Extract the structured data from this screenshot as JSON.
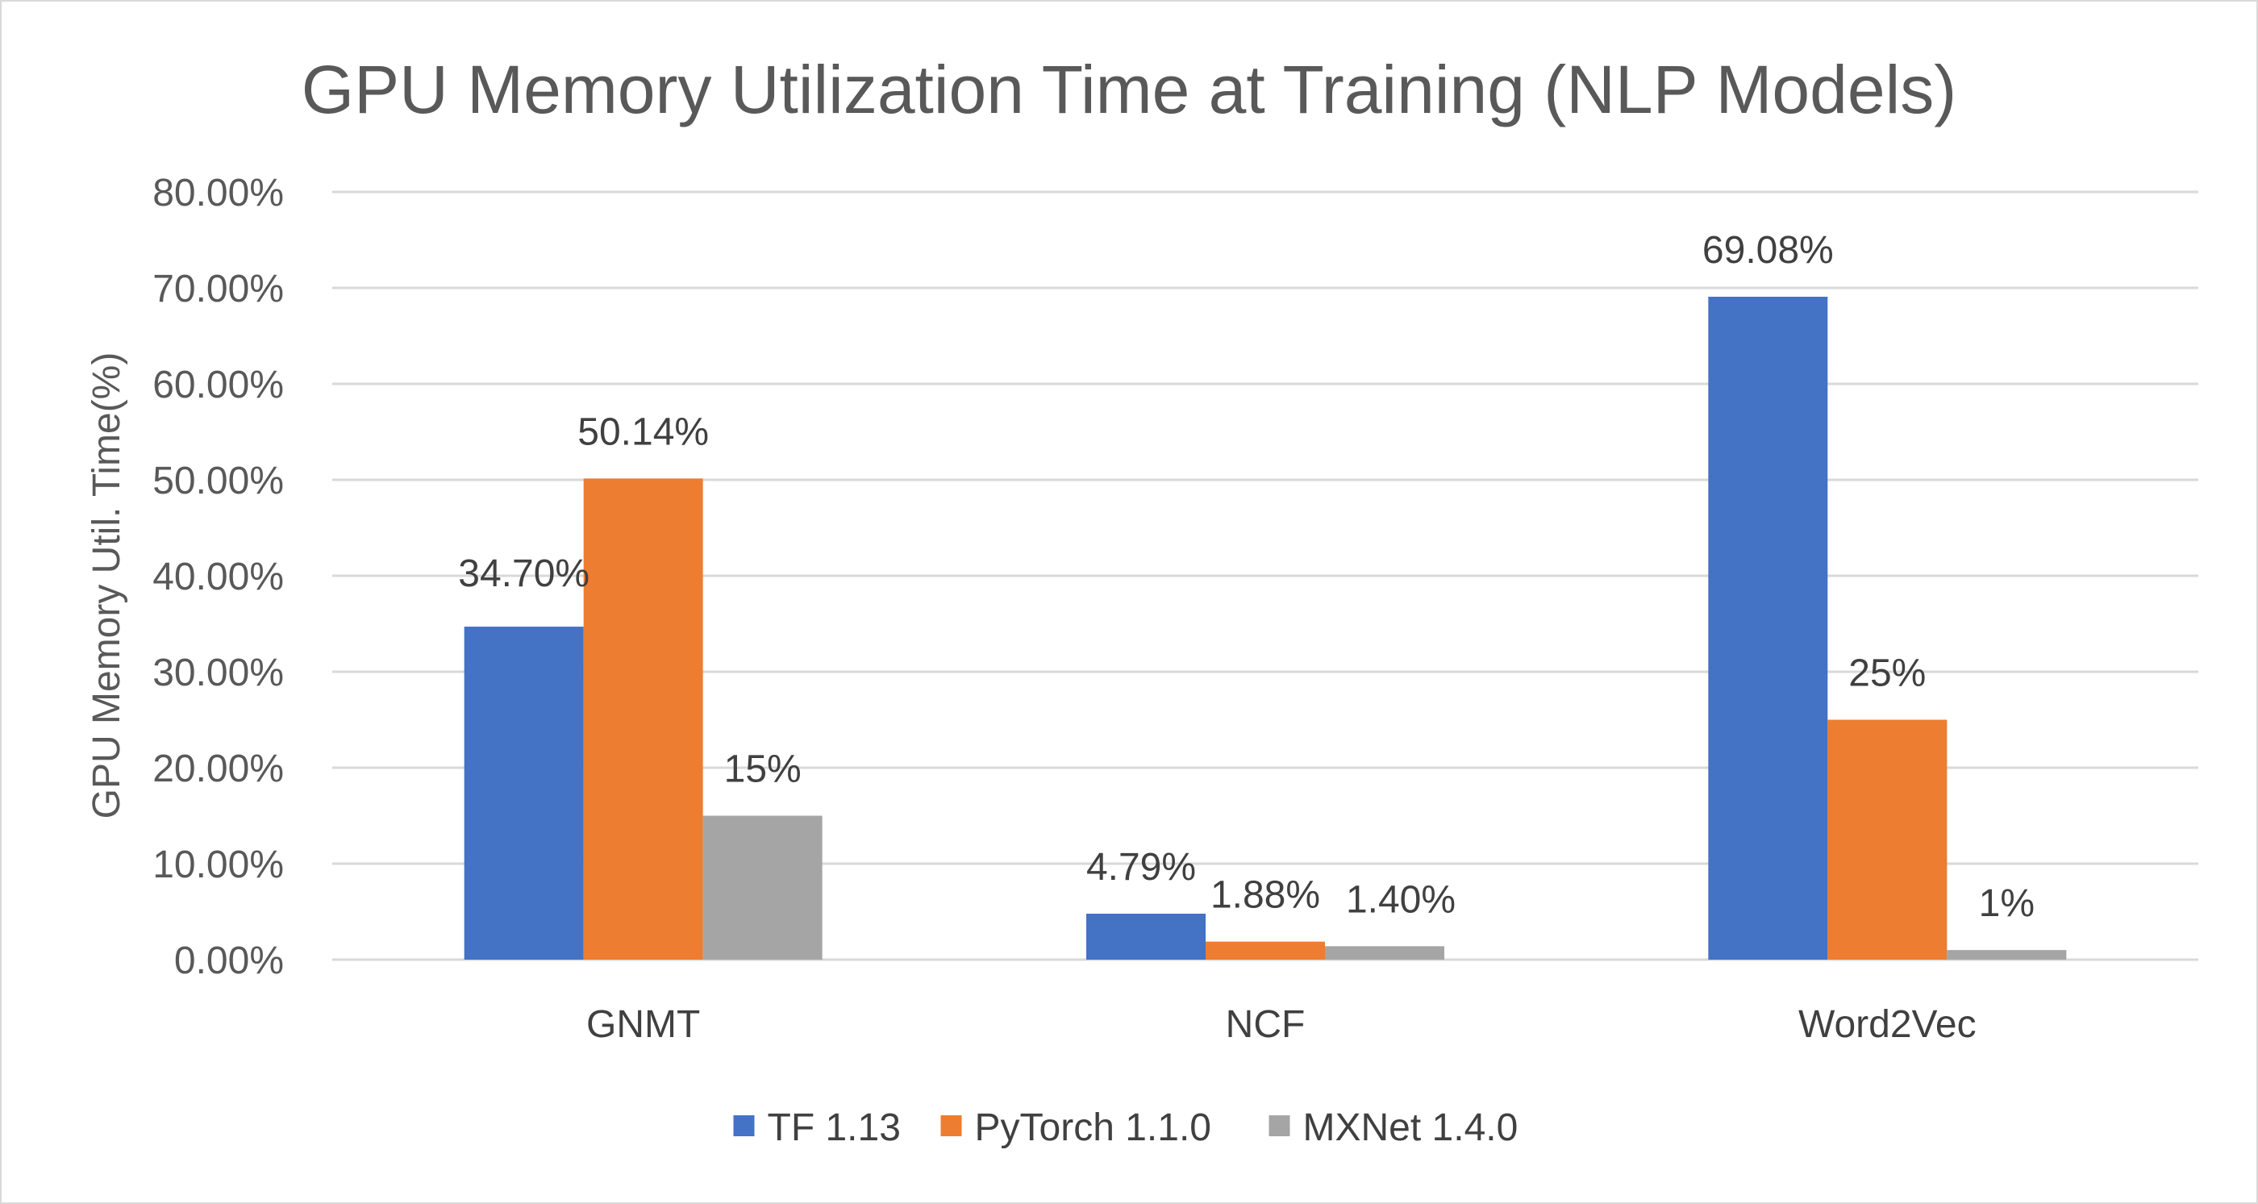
{
  "chart_data": {
    "type": "bar",
    "title": "GPU Memory Utilization Time at Training (NLP Models)",
    "ylabel": "GPU Memory Util. Time(%)",
    "xlabel": "",
    "categories": [
      "GNMT",
      "NCF",
      "Word2Vec"
    ],
    "ylim": [
      0,
      80
    ],
    "yticks": [
      0,
      10,
      20,
      30,
      40,
      50,
      60,
      70,
      80
    ],
    "ytick_labels": [
      "0.00%",
      "10.00%",
      "20.00%",
      "30.00%",
      "40.00%",
      "50.00%",
      "60.00%",
      "70.00%",
      "80.00%"
    ],
    "grid": true,
    "legend_position": "bottom",
    "series": [
      {
        "name": "TF 1.13",
        "color": "#4472c4",
        "values": [
          34.7,
          4.79,
          69.08
        ],
        "labels": [
          "34.70%",
          "4.79%",
          "69.08%"
        ]
      },
      {
        "name": "PyTorch 1.1.0",
        "color": "#ed7d31",
        "values": [
          50.14,
          1.88,
          25
        ],
        "labels": [
          "50.14%",
          "1.88%",
          "25%"
        ]
      },
      {
        "name": "MXNet 1.4.0",
        "color": "#a5a5a5",
        "values": [
          15,
          1.4,
          1
        ],
        "labels": [
          "15%",
          "1.40%",
          "1%"
        ]
      }
    ]
  }
}
